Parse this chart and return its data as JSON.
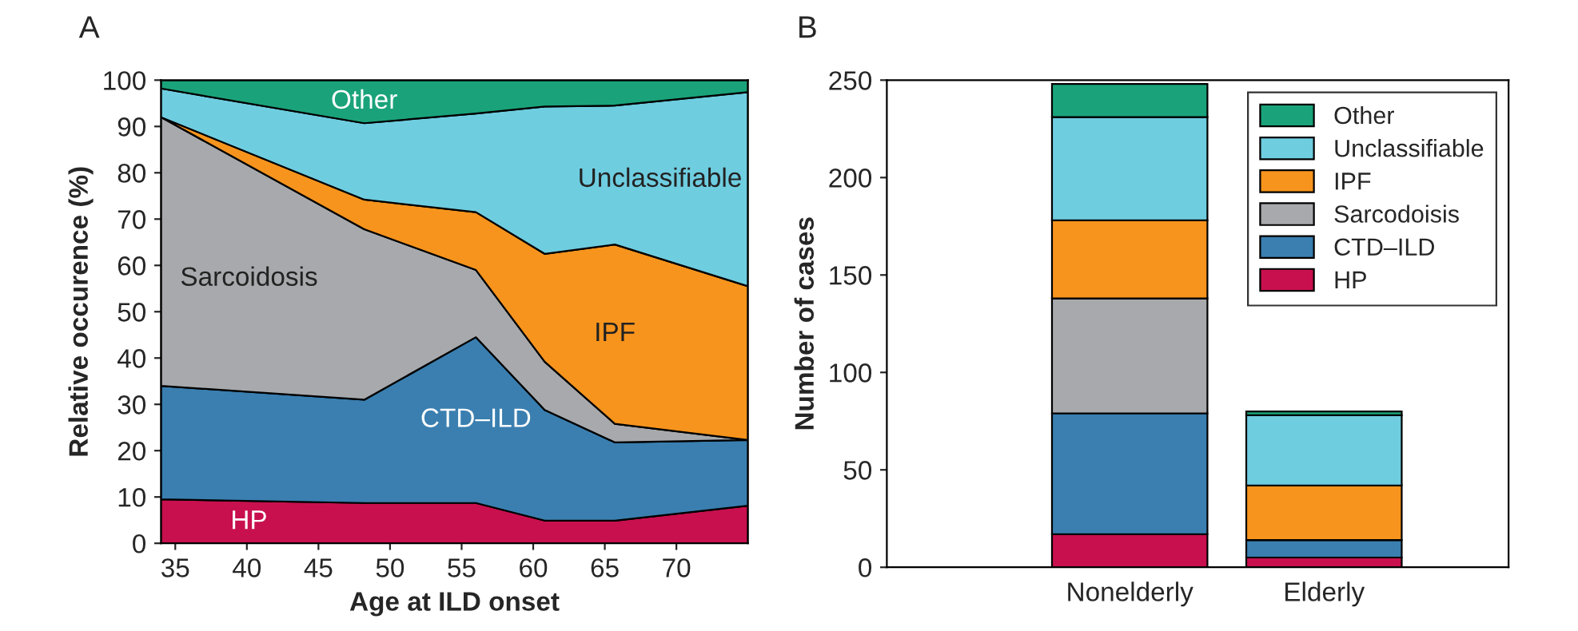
{
  "chart_data": [
    {
      "type": "area",
      "stacked": true,
      "xlabel": "Age at ILD onset",
      "ylabel": "Relative occurence (%)",
      "x": [
        34,
        48.2,
        56,
        60.8,
        65.7,
        75
      ],
      "series": [
        {
          "name": "HP",
          "color": "#c8104e",
          "values": [
            9.5,
            8.7,
            8.7,
            4.9,
            4.9,
            8.1
          ]
        },
        {
          "name": "CTD–ILD",
          "color": "#3a7fb0",
          "values": [
            24.5,
            22.3,
            35.8,
            23.9,
            16.9,
            14.2
          ]
        },
        {
          "name": "Sarcoidosis",
          "color": "#a7a9ac",
          "values": [
            58,
            36.8,
            14.5,
            10.4,
            4,
            0
          ]
        },
        {
          "name": "IPF",
          "color": "#f7941d",
          "values": [
            0,
            6.4,
            12.5,
            23.3,
            38.7,
            33.2
          ]
        },
        {
          "name": "Unclassifiable",
          "color": "#6fcde0",
          "values": [
            6.2,
            16.5,
            21.3,
            31.8,
            30,
            41.9
          ]
        },
        {
          "name": "Other",
          "color": "#1aa37a",
          "values": [
            1.8,
            9.3,
            7.2,
            5.7,
            5.5,
            2.6
          ]
        }
      ],
      "xlim": [
        34,
        75
      ],
      "xticks": [
        35,
        40,
        45,
        50,
        55,
        60,
        65,
        70
      ],
      "ylim": [
        0,
        100
      ],
      "yticks": [
        0,
        10,
        20,
        30,
        40,
        50,
        60,
        70,
        80,
        90,
        100
      ],
      "grid": false,
      "legend": false,
      "annotations": [
        "A"
      ]
    },
    {
      "type": "bar",
      "stacked": true,
      "ylabel": "Number of cases",
      "categories": [
        "Nonelderly",
        "Elderly"
      ],
      "series": [
        {
          "name": "HP",
          "color": "#c8104e",
          "values": [
            17,
            5
          ]
        },
        {
          "name": "CTD–ILD",
          "color": "#3a7fb0",
          "values": [
            62,
            9
          ]
        },
        {
          "name": "Sarcodoisis",
          "color": "#a7a9ac",
          "values": [
            59,
            0
          ]
        },
        {
          "name": "IPF",
          "color": "#f7941d",
          "values": [
            40,
            28
          ]
        },
        {
          "name": "Unclassifiable",
          "color": "#6fcde0",
          "values": [
            53,
            36
          ]
        },
        {
          "name": "Other",
          "color": "#1aa37a",
          "values": [
            17,
            2
          ]
        }
      ],
      "ylim": [
        0,
        250
      ],
      "yticks": [
        0,
        50,
        100,
        150,
        200,
        250
      ],
      "grid": false,
      "legend": "top right",
      "annotations": [
        "B"
      ]
    }
  ]
}
